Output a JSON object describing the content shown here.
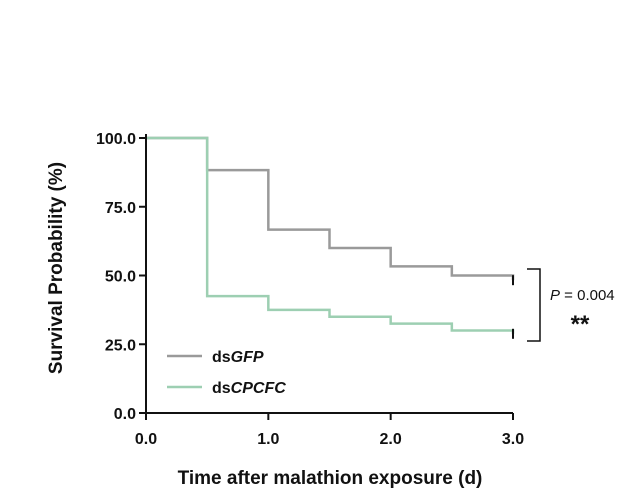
{
  "chart_data": {
    "type": "line",
    "subtype": "kaplan-meier-step",
    "xlabel": "Time after malathion exposure (d)",
    "ylabel": "Survival Probability (%)",
    "xlim": [
      0,
      3
    ],
    "ylim": [
      0,
      100
    ],
    "xticks": [
      "0.0",
      "1.0",
      "2.0",
      "3.0"
    ],
    "yticks": [
      "0.0",
      "25.0",
      "50.0",
      "75.0",
      "100.0"
    ],
    "series": [
      {
        "name": "dsGFP",
        "prefix": "ds",
        "gene": "GFP",
        "color": "#9a9a9a",
        "x": [
          0,
          0.5,
          1.0,
          1.5,
          2.0,
          2.5,
          3.0
        ],
        "values": [
          100,
          88.3,
          66.7,
          60.0,
          53.3,
          50.0,
          48.3
        ]
      },
      {
        "name": "dsCPCFC",
        "prefix": "ds",
        "gene": "CPCFC",
        "color": "#9dcfb2",
        "x": [
          0,
          0.5,
          1.0,
          1.5,
          2.0,
          2.5,
          3.0
        ],
        "values": [
          100,
          42.5,
          37.5,
          35.0,
          32.5,
          30.0,
          28.8
        ]
      }
    ],
    "annotation": {
      "p_label": "P",
      "p_value": " = 0.004",
      "significance": "**"
    }
  }
}
